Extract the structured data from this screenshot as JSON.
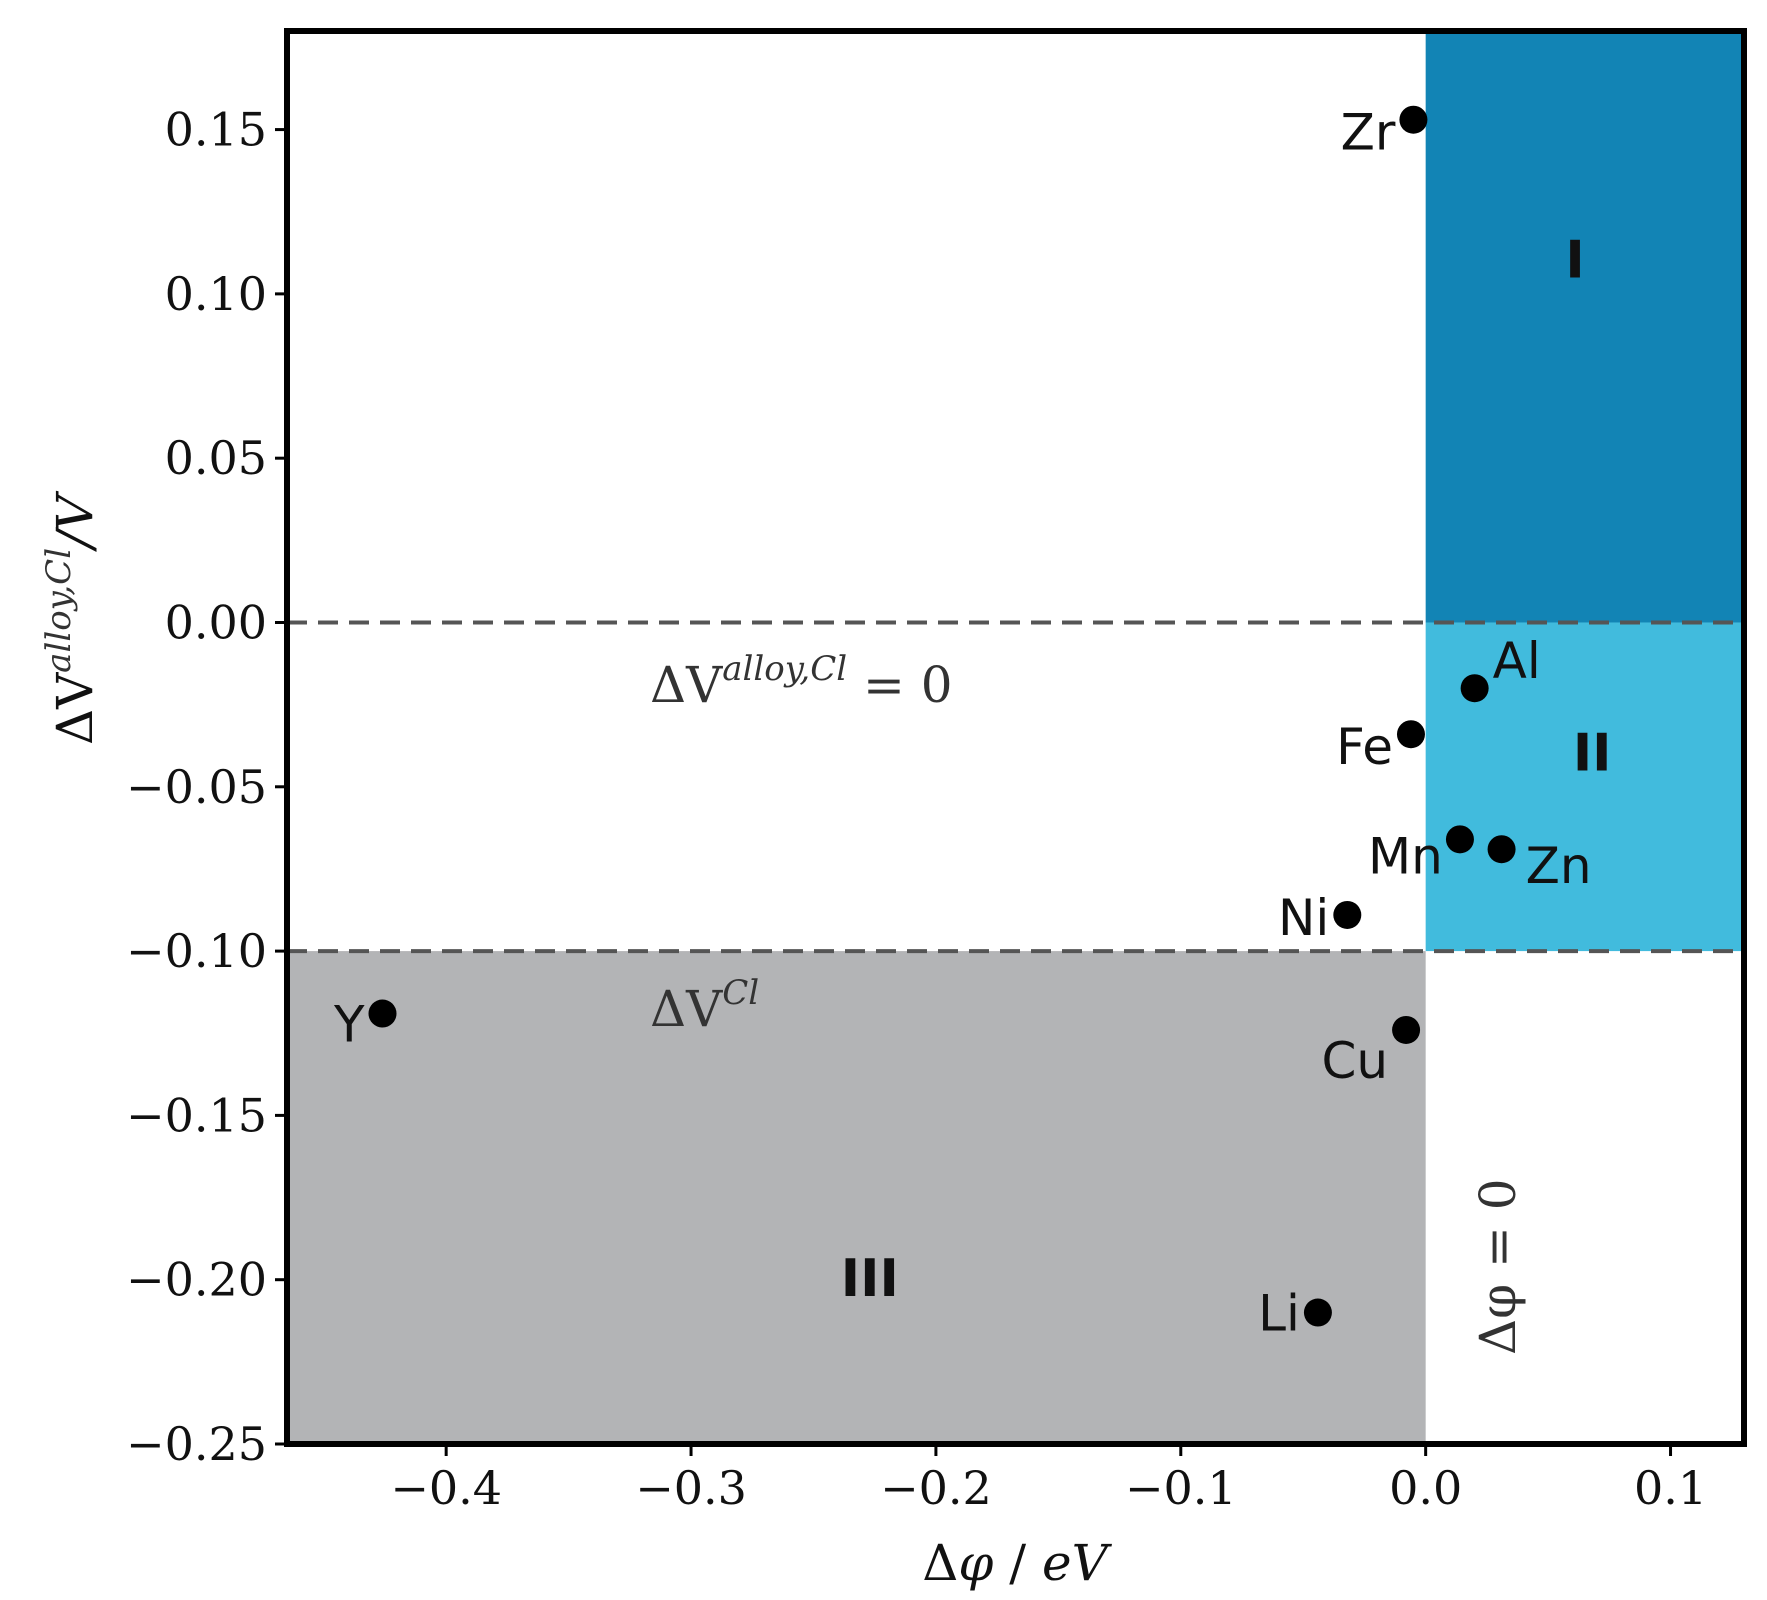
{
  "chart_data": {
    "type": "scatter",
    "xlabel": "Δφ / eV",
    "ylabel": "ΔV^{alloy,Cl} / V",
    "xlim": [
      -0.465,
      0.13
    ],
    "ylim": [
      -0.25,
      0.18
    ],
    "xticks": [
      -0.4,
      -0.3,
      -0.2,
      -0.1,
      0.0,
      0.1
    ],
    "xtick_labels": [
      "−0.4",
      "−0.3",
      "−0.2",
      "−0.1",
      "0.0",
      "0.1"
    ],
    "yticks": [
      0.15,
      0.1,
      0.05,
      0.0,
      -0.05,
      -0.1,
      -0.15,
      -0.2,
      -0.25
    ],
    "ytick_labels": [
      "0.15",
      "0.10",
      "0.05",
      "0.00",
      "−0.05",
      "−0.10",
      "−0.15",
      "−0.20",
      "−0.25"
    ],
    "points": [
      {
        "label": "Zr",
        "x": -0.005,
        "y": 0.153
      },
      {
        "label": "Al",
        "x": 0.02,
        "y": -0.02
      },
      {
        "label": "Fe",
        "x": -0.006,
        "y": -0.034
      },
      {
        "label": "Mn",
        "x": 0.014,
        "y": -0.066
      },
      {
        "label": "Zn",
        "x": 0.031,
        "y": -0.069
      },
      {
        "label": "Ni",
        "x": -0.032,
        "y": -0.089
      },
      {
        "label": "Y",
        "x": -0.426,
        "y": -0.119
      },
      {
        "label": "Cu",
        "x": -0.008,
        "y": -0.124
      },
      {
        "label": "Li",
        "x": -0.044,
        "y": -0.21
      }
    ],
    "regions": [
      {
        "label": "I",
        "x": [
          0.0,
          0.13
        ],
        "y": [
          0.0,
          0.18
        ],
        "color": "#1284b5"
      },
      {
        "label": "II",
        "x": [
          0.0,
          0.13
        ],
        "y": [
          -0.1,
          0.0
        ],
        "color": "#41bbdd"
      },
      {
        "label": "III",
        "x": [
          -0.465,
          0.0
        ],
        "y": [
          -0.25,
          -0.1
        ],
        "color": "#b3b4b6"
      }
    ],
    "reference_lines": [
      {
        "orientation": "horizontal",
        "y": 0.0,
        "style": "dashed",
        "label": "ΔV^{alloy,Cl} = 0"
      },
      {
        "orientation": "horizontal",
        "y": -0.1,
        "style": "dashed",
        "label": "ΔV^{Cl}"
      },
      {
        "orientation": "vertical",
        "x": 0.0,
        "label": "Δφ = 0"
      }
    ],
    "marker_color": "#000000",
    "line_color": "#555555",
    "grid": false
  },
  "text": {
    "xlabel_delta": "Δ",
    "xlabel_phi": "φ",
    "xlabel_rest": " / ",
    "xlabel_unit": "eV",
    "ylabel_main": "ΔV",
    "ylabel_sup": "alloy,Cl",
    "ylabel_unit": "/V",
    "hline0_main": "ΔV",
    "hline0_sup": "alloy,Cl",
    "hline0_eq": " = 0",
    "hline1_main": "ΔV",
    "hline1_sup": "Cl",
    "vline_label": "Δφ = 0"
  }
}
